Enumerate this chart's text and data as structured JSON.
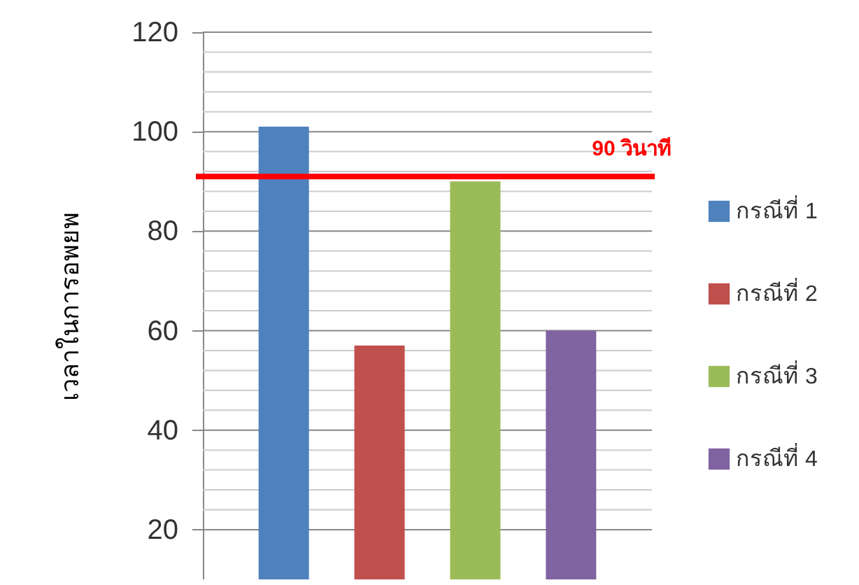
{
  "chart_data": {
    "type": "bar",
    "ylabel": "เวลาในการอพยพ",
    "categories": [
      null,
      null,
      null,
      null
    ],
    "series": [
      {
        "name": "กรณีที่ 1",
        "color": "#4f81bd",
        "values": [
          101,
          null,
          null,
          null
        ]
      },
      {
        "name": "กรณีที่ 2",
        "color": "#c0504d",
        "values": [
          null,
          57,
          null,
          null
        ]
      },
      {
        "name": "กรณีที่ 3",
        "color": "#9bbb59",
        "values": [
          null,
          null,
          90,
          null
        ]
      },
      {
        "name": "กรณีที่ 4",
        "color": "#8064a2",
        "values": [
          null,
          null,
          null,
          60
        ]
      }
    ],
    "ylim": [
      10,
      120
    ],
    "yticks": [
      20,
      {
        "value": 24,
        "label": null
      },
      {
        "value": 28,
        "label": null
      },
      {
        "value": 32,
        "label": null
      },
      {
        "value": 36,
        "label": null
      },
      40,
      {
        "value": 44,
        "label": null
      },
      {
        "value": 48,
        "label": null
      },
      {
        "value": 52,
        "label": null
      },
      {
        "value": 56,
        "label": null
      },
      60,
      {
        "value": 64,
        "label": null
      },
      {
        "value": 68,
        "label": null
      },
      {
        "value": 72,
        "label": null
      },
      {
        "value": 76,
        "label": null
      },
      80,
      {
        "value": 84,
        "label": null
      },
      {
        "value": 88,
        "label": null
      },
      {
        "value": 92,
        "label": null
      },
      {
        "value": 96,
        "label": null
      },
      100,
      {
        "value": 104,
        "label": null
      },
      {
        "value": 108,
        "label": null
      },
      {
        "value": 112,
        "label": null
      },
      {
        "value": 116,
        "label": null
      },
      120
    ],
    "ref_lines": [
      {
        "axis": "y",
        "value": 91,
        "label": "90 วินาที",
        "color": "#ff0000"
      }
    ],
    "grid": true,
    "legend": "right"
  }
}
